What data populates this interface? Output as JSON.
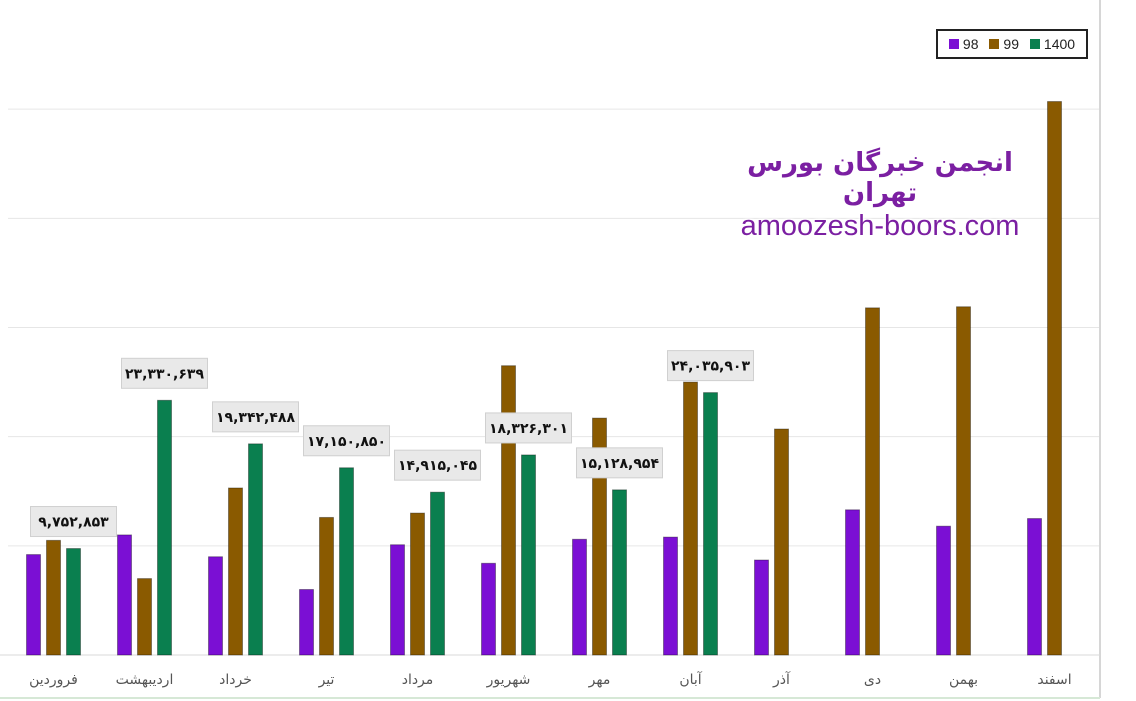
{
  "chart_data": {
    "type": "bar",
    "categories": [
      "فروردین",
      "اردیبهشت",
      "خرداد",
      "تیر",
      "مرداد",
      "شهریور",
      "مهر",
      "آبان",
      "آذر",
      "دی",
      "بهمن",
      "اسفند"
    ],
    "series": [
      {
        "name": "98",
        "color": "#7b0fd4",
        "values": [
          9200000,
          11000000,
          9000000,
          6000000,
          10100000,
          8400000,
          10600000,
          10800000,
          8700000,
          13300000,
          11800000,
          12500000
        ]
      },
      {
        "name": "99",
        "color": "#8a5a00",
        "values": [
          10500000,
          7000000,
          15300000,
          12600000,
          13000000,
          26500000,
          21700000,
          25000000,
          20700000,
          31800000,
          31900000,
          50700000
        ]
      },
      {
        "name": "1400",
        "color": "#0a7f4f",
        "values": [
          9752853,
          23330639,
          19342488,
          17150850,
          14915045,
          18326301,
          15128954,
          24035903,
          null,
          null,
          null,
          null
        ]
      }
    ],
    "data_labels": {
      "1400": [
        "۹,۷۵۲,۸۵۳",
        "۲۳,۳۳۰,۶۳۹",
        "۱۹,۳۴۲,۴۸۸",
        "۱۷,۱۵۰,۸۵۰",
        "۱۴,۹۱۵,۰۴۵",
        "۱۸,۳۲۶,۳۰۱",
        "۱۵,۱۲۸,۹۵۴",
        "۲۴,۰۳۵,۹۰۳",
        "",
        "",
        "",
        ""
      ]
    },
    "ylim": [
      0,
      60000000
    ],
    "grid": true,
    "legend": "top-right",
    "title": "",
    "xlabel": "",
    "ylabel": ""
  },
  "watermark": {
    "line1": "انجمن خبرگان بورس تهران",
    "line2": "amoozesh-boors.com"
  }
}
